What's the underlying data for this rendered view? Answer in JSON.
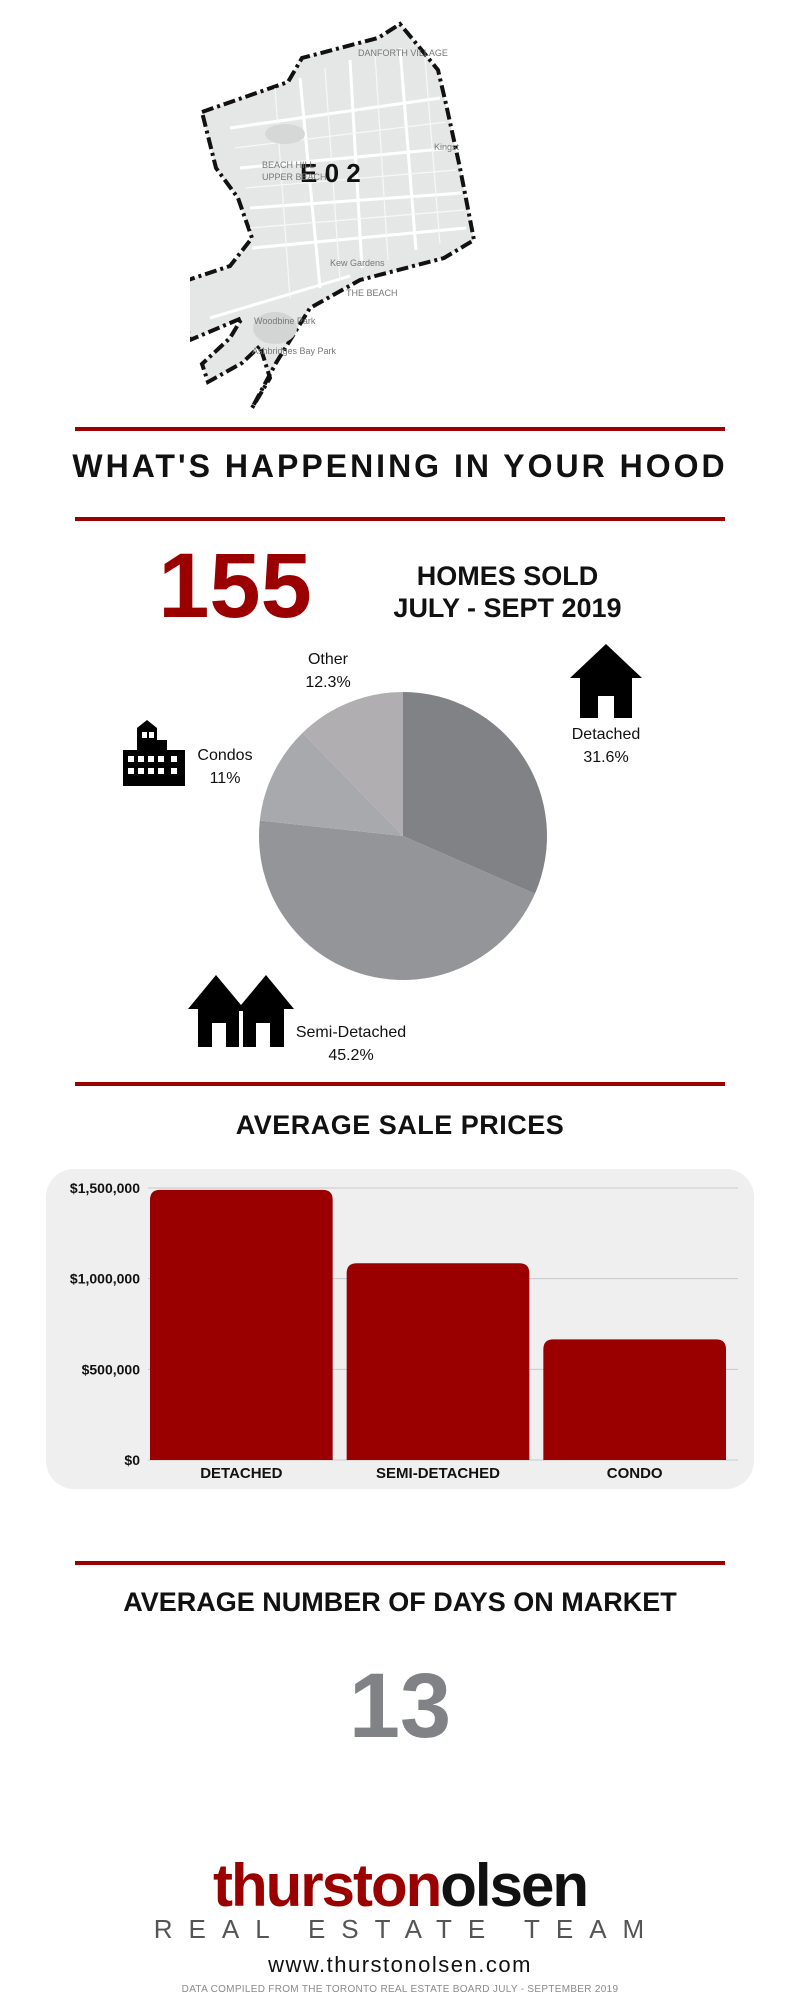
{
  "map": {
    "area_code": "E 0 2",
    "place_labels": [
      "DANFORTH VILLAGE",
      "BEACH HILL",
      "UPPER BEACH",
      "Kew Gardens",
      "THE BEACH",
      "Woodbine Park",
      "Ashbridges Bay Park",
      "Kingst"
    ]
  },
  "section_hood": {
    "title": "WHAT'S HAPPENING IN YOUR HOOD"
  },
  "homes_sold": {
    "count": "155",
    "line1": "HOMES SOLD",
    "line2": "JULY - SEPT 2019"
  },
  "colors": {
    "accent": "#9a0000",
    "bar_panel": "#efefef",
    "days_gray": "#808285"
  },
  "chart_data": [
    {
      "type": "pie",
      "slices": [
        {
          "label": "Detached",
          "percent_label": "31.6%",
          "value": 31.6,
          "color": "#808285",
          "icon": "house-icon"
        },
        {
          "label": "Semi-Detached",
          "percent_label": "45.2%",
          "value": 45.2,
          "color": "#939598",
          "icon": "semi-detached-icon"
        },
        {
          "label": "Condos",
          "percent_label": "11%",
          "value": 11,
          "color": "#a7a9ac",
          "icon": "condo-building-icon"
        },
        {
          "label": "Other",
          "percent_label": "12.3%",
          "value": 12.3,
          "color": "#b0aeb0",
          "icon": ""
        }
      ]
    },
    {
      "type": "bar",
      "title": "AVERAGE SALE PRICES",
      "categories": [
        "DETACHED",
        "SEMI-DETACHED",
        "CONDO"
      ],
      "values": [
        1490000,
        1085000,
        665000
      ],
      "ylim": [
        0,
        1500000
      ],
      "y_ticks": [
        0,
        500000,
        1000000,
        1500000
      ],
      "y_tick_labels": [
        "$0",
        "$500,000",
        "$1,000,000",
        "$1,500,000"
      ],
      "bar_color": "#9a0000",
      "grid": true
    }
  ],
  "days_on_market": {
    "title": "AVERAGE NUMBER OF DAYS ON MARKET",
    "value": "13"
  },
  "footer": {
    "brand_part1": "thurston",
    "brand_part2": "olsen",
    "tagline": "REAL ESTATE TEAM",
    "website": "www.thurstonolsen.com",
    "source": "DATA COMPILED FROM THE TORONTO REAL ESTATE BOARD JULY - SEPTEMBER 2019"
  }
}
